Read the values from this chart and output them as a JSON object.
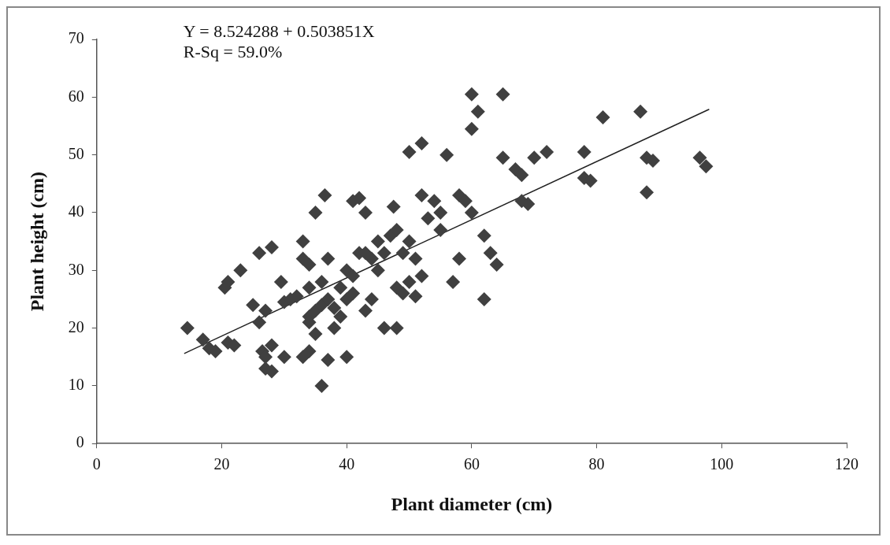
{
  "chart_data": {
    "type": "scatter",
    "xlabel": "Plant diameter (cm)",
    "ylabel": "Plant height (cm)",
    "annotations": [
      "Y = 8.524288 + 0.503851X",
      "R-Sq = 59.0%"
    ],
    "xlim": [
      0,
      120
    ],
    "xticks": [
      0,
      20,
      40,
      60,
      80,
      100,
      120
    ],
    "ylim": [
      0,
      70
    ],
    "yticks": [
      0,
      10,
      20,
      30,
      40,
      50,
      60,
      70
    ],
    "grid": false,
    "legend": false,
    "marker": "diamond",
    "series": [
      {
        "color": "#404040",
        "x": [
          14.5,
          17,
          18,
          19,
          21,
          22,
          20.5,
          21,
          23,
          25,
          26,
          26,
          27,
          26.5,
          27,
          27,
          28,
          28,
          28,
          29.5,
          30,
          30,
          31,
          32,
          33,
          33,
          33,
          34,
          34,
          34,
          34,
          34,
          35,
          35,
          35,
          36,
          36,
          36,
          36.5,
          37,
          37,
          37,
          38,
          38,
          39,
          39,
          40,
          40,
          40,
          41,
          41,
          41,
          42,
          42,
          43,
          43,
          43,
          44,
          44,
          45,
          45,
          46,
          46,
          47,
          47.5,
          48,
          48,
          48,
          49,
          49,
          50,
          50,
          50,
          51,
          51,
          52,
          52,
          52,
          53,
          54,
          55,
          55,
          56,
          57,
          58,
          58,
          59,
          60,
          60,
          60,
          61,
          62,
          62,
          63,
          64,
          65,
          65,
          67,
          68,
          68,
          69,
          70,
          72,
          78,
          78,
          79,
          81,
          87,
          88,
          88,
          89,
          96.5,
          97.5
        ],
        "values": [
          20,
          18,
          16.5,
          16,
          17.5,
          17,
          27,
          28,
          30,
          24,
          21,
          33,
          23,
          16,
          15,
          13,
          17,
          12.5,
          34,
          28,
          15,
          24.5,
          25,
          25.5,
          35,
          15,
          32,
          31,
          27,
          22,
          21,
          16,
          40,
          23,
          19,
          28,
          24,
          10,
          43,
          32,
          25,
          14.5,
          20,
          23.5,
          27,
          22,
          30,
          25,
          15,
          26,
          42,
          29,
          33,
          42.5,
          40,
          33,
          23,
          25,
          32,
          35,
          30,
          20,
          33,
          36,
          41,
          37,
          27,
          20,
          26,
          33,
          35,
          28,
          50.5,
          25.5,
          32,
          52,
          29,
          43,
          39,
          42,
          37,
          40,
          50,
          28,
          32,
          43,
          42,
          40,
          60.5,
          54.5,
          57.5,
          25,
          36,
          33,
          31,
          60.5,
          49.5,
          47.5,
          42,
          46.5,
          41.5,
          49.5,
          50.5,
          50.5,
          46,
          45.5,
          56.5,
          57.5,
          43.5,
          49.5,
          49,
          49.5,
          48
        ]
      },
      {
        "type": "line",
        "color": "#202020",
        "marker": "none",
        "line_style": "solid",
        "x": [
          14,
          98
        ],
        "values": [
          15.6,
          57.9
        ]
      }
    ]
  }
}
